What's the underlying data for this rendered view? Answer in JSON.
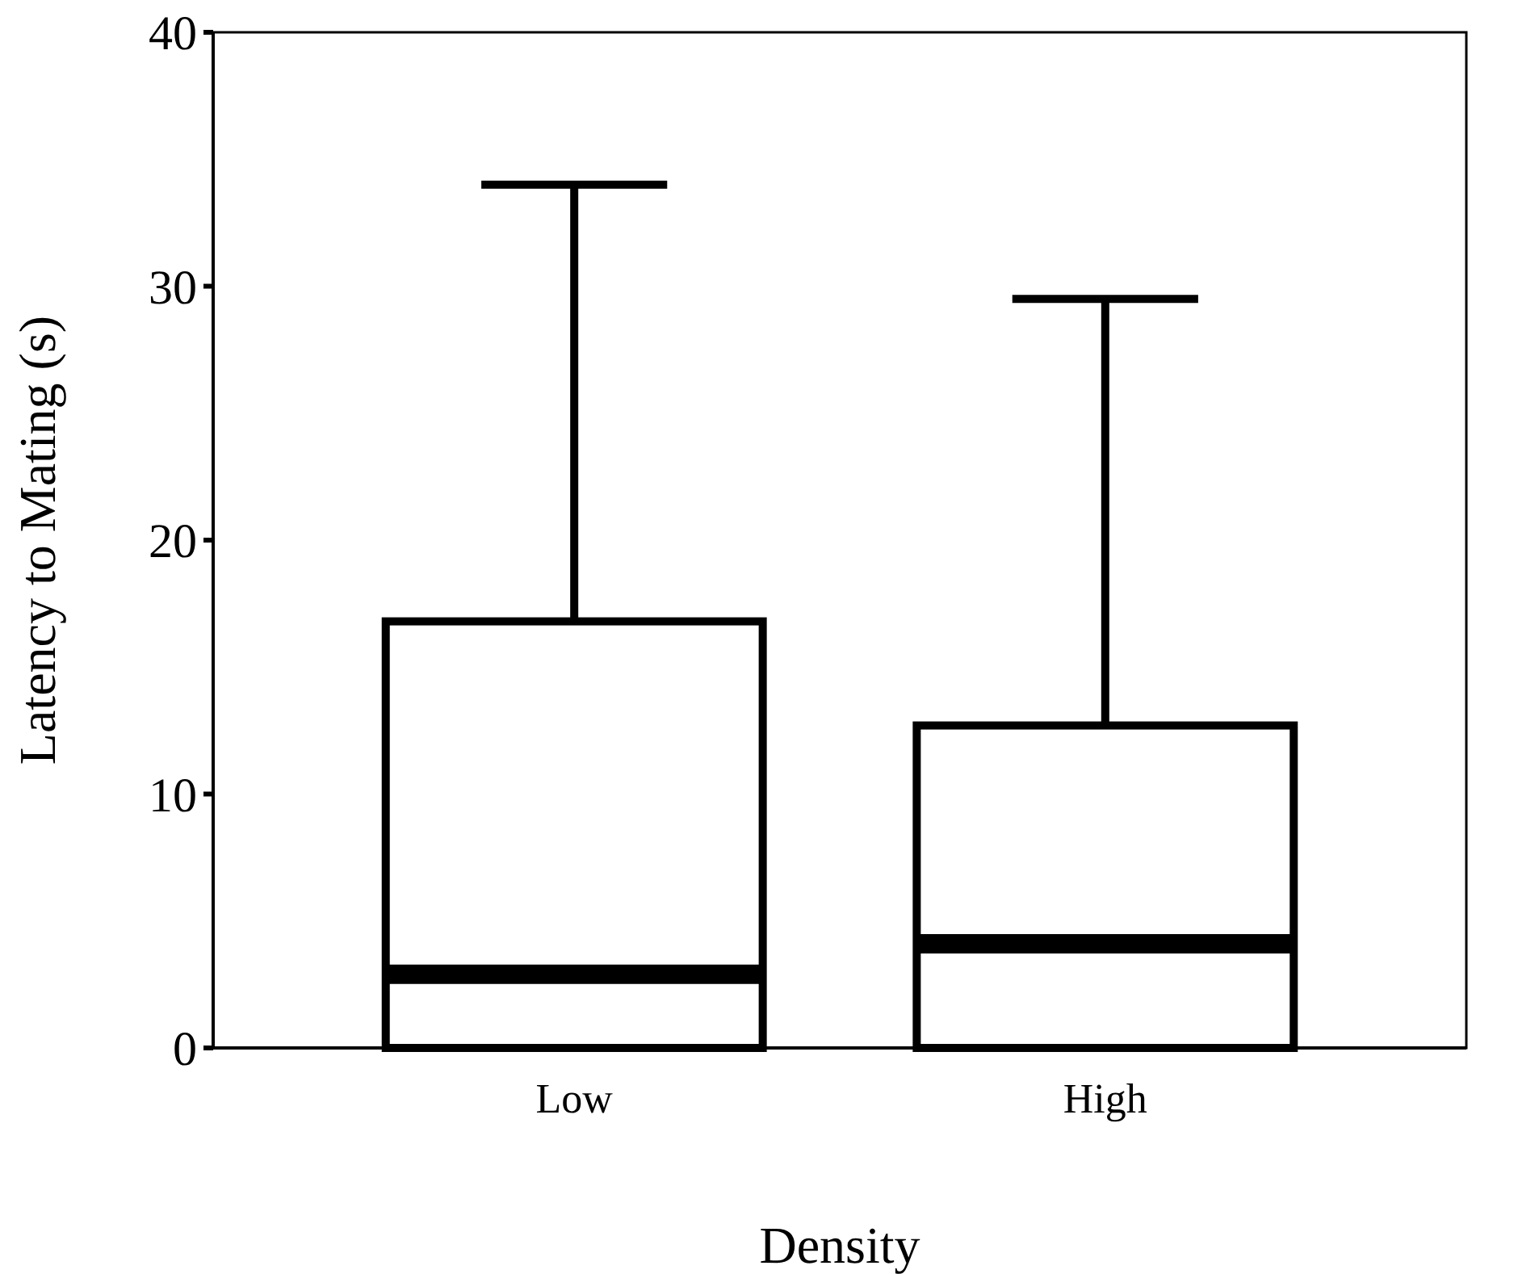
{
  "chart_data": {
    "type": "box",
    "xlabel": "Density",
    "ylabel": "Latency to Mating (s)",
    "categories": [
      "Low",
      "High"
    ],
    "boxes": [
      {
        "low": 0,
        "q1": 0,
        "median": 2.9,
        "q3": 16.8,
        "high": 34
      },
      {
        "low": 0,
        "q1": 0,
        "median": 4.1,
        "q3": 12.7,
        "high": 29.5
      }
    ],
    "ylim": [
      0,
      40
    ],
    "yticks": [
      0,
      10,
      20,
      30,
      40
    ],
    "grid": false
  }
}
